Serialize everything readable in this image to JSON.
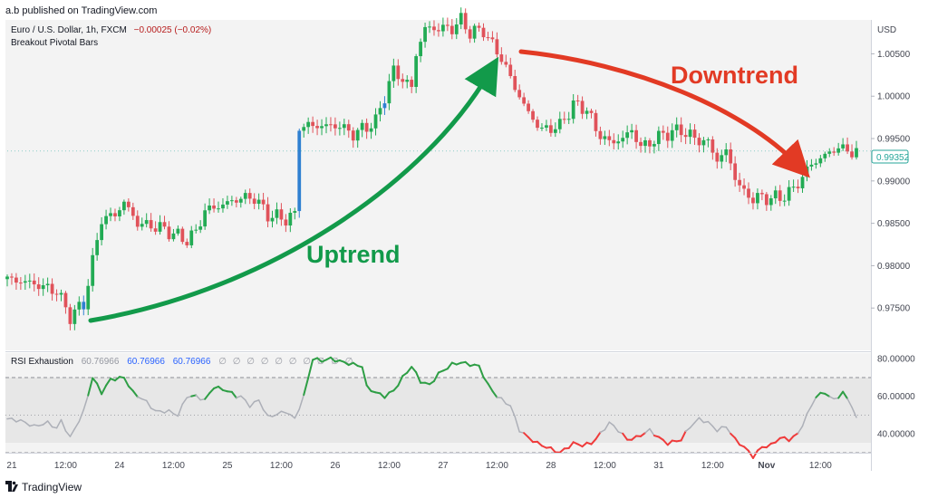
{
  "header": {
    "published_by": "a.b published on TradingView.com",
    "symbol": "Euro / U.S. Dollar, 1h, FXCM",
    "change": "−0.00025 (−0.02%)",
    "indicator": "Breakout Pivotal Bars"
  },
  "footer": {
    "brand": "TradingView"
  },
  "colors": {
    "up": "#22ab54",
    "down": "#e0525a",
    "breakout": "#2f80d1",
    "uptrend_arrow": "#129a4a",
    "downtrend_arrow": "#e23a24",
    "rsi_neutral": "#adb0b8",
    "rsi_overbought": "#2e9e45",
    "rsi_oversold": "#ef3b3b",
    "price_tag": "#26a69a"
  },
  "chart_data": [
    {
      "type": "candlestick",
      "currency_label": "USD",
      "ylim": [
        0.97,
        1.009
      ],
      "yticks": [
        "1.00500",
        "1.00000",
        "0.99500",
        "0.99000",
        "0.98500",
        "0.98000",
        "0.97500"
      ],
      "last_price": "0.99352",
      "last_price_value": 0.99352,
      "x_labels": [
        {
          "i": 1,
          "label": "21"
        },
        {
          "i": 13,
          "label": "12:00"
        },
        {
          "i": 25,
          "label": "24"
        },
        {
          "i": 37,
          "label": "12:00"
        },
        {
          "i": 49,
          "label": "25"
        },
        {
          "i": 61,
          "label": "12:00"
        },
        {
          "i": 73,
          "label": "26"
        },
        {
          "i": 85,
          "label": "12:00"
        },
        {
          "i": 97,
          "label": "27"
        },
        {
          "i": 109,
          "label": "12:00"
        },
        {
          "i": 121,
          "label": "28"
        },
        {
          "i": 133,
          "label": "12:00"
        },
        {
          "i": 145,
          "label": "31"
        },
        {
          "i": 157,
          "label": "12:00"
        },
        {
          "i": 169,
          "label": "Nov"
        },
        {
          "i": 181,
          "label": "12:00"
        }
      ],
      "annotations": [
        {
          "text": "Uptrend",
          "arrow": "up"
        },
        {
          "text": "Downtrend",
          "arrow": "down"
        }
      ],
      "close_keypoints": [
        [
          0,
          0.9784
        ],
        [
          5,
          0.978
        ],
        [
          11,
          0.977
        ],
        [
          14,
          0.974
        ],
        [
          17,
          0.9755
        ],
        [
          19,
          0.9805
        ],
        [
          21,
          0.9855
        ],
        [
          24,
          0.986
        ],
        [
          26,
          0.9875
        ],
        [
          29,
          0.985
        ],
        [
          34,
          0.9845
        ],
        [
          38,
          0.9835
        ],
        [
          40,
          0.983
        ],
        [
          42,
          0.984
        ],
        [
          44,
          0.9865
        ],
        [
          47,
          0.987
        ],
        [
          52,
          0.988
        ],
        [
          55,
          0.988
        ],
        [
          58,
          0.986
        ],
        [
          62,
          0.9855
        ],
        [
          64,
          0.986
        ],
        [
          65,
          0.9965
        ],
        [
          69,
          0.9965
        ],
        [
          74,
          0.9965
        ],
        [
          77,
          0.9955
        ],
        [
          82,
          0.997
        ],
        [
          84,
          1.0
        ],
        [
          86,
          1.003
        ],
        [
          88,
          1.002
        ],
        [
          90,
          1.001
        ],
        [
          91,
          1.005
        ],
        [
          93,
          1.008
        ],
        [
          96,
          1.008
        ],
        [
          99,
          1.008
        ],
        [
          101,
          1.009
        ],
        [
          103,
          1.0075
        ],
        [
          106,
          1.0078
        ],
        [
          108,
          1.006
        ],
        [
          110,
          1.0045
        ],
        [
          113,
          1.001
        ],
        [
          116,
          0.998
        ],
        [
          119,
          0.996
        ],
        [
          123,
          0.9965
        ],
        [
          126,
          0.999
        ],
        [
          129,
          0.9985
        ],
        [
          131,
          0.996
        ],
        [
          134,
          0.9945
        ],
        [
          137,
          0.995
        ],
        [
          139,
          0.996
        ],
        [
          141,
          0.994
        ],
        [
          143,
          0.9945
        ],
        [
          146,
          0.9955
        ],
        [
          150,
          0.996
        ],
        [
          153,
          0.995
        ],
        [
          156,
          0.9945
        ],
        [
          158,
          0.9925
        ],
        [
          160,
          0.9935
        ],
        [
          162,
          0.9905
        ],
        [
          164,
          0.9885
        ],
        [
          166,
          0.988
        ],
        [
          169,
          0.988
        ],
        [
          172,
          0.988
        ],
        [
          175,
          0.989
        ],
        [
          177,
          0.9905
        ],
        [
          179,
          0.992
        ],
        [
          182,
          0.993
        ],
        [
          185,
          0.994
        ],
        [
          187,
          0.9935
        ]
      ],
      "breakout_bars": [
        17,
        65,
        84
      ]
    },
    {
      "type": "line",
      "title": "RSI Exhaustion",
      "values_shown": [
        "60.76966",
        "60.76966",
        "60.76966"
      ],
      "na_markers": [
        "∅",
        "∅",
        "∅",
        "∅",
        "∅",
        "∅",
        "∅",
        "∅",
        "∅",
        "∅"
      ],
      "ylim": [
        30,
        83
      ],
      "yticks": [
        "80.00000",
        "60.00000",
        "40.00000"
      ],
      "upper_band": 70,
      "lower_band": 30,
      "mid_line": 50,
      "overbought": 60,
      "oversold": 40,
      "rsi_keypoints": [
        [
          0,
          48
        ],
        [
          3,
          47
        ],
        [
          6,
          44
        ],
        [
          9,
          46
        ],
        [
          11,
          43
        ],
        [
          12,
          47
        ],
        [
          14,
          38
        ],
        [
          17,
          52
        ],
        [
          19,
          70
        ],
        [
          21,
          62
        ],
        [
          23,
          69
        ],
        [
          26,
          70
        ],
        [
          28,
          62
        ],
        [
          31,
          57
        ],
        [
          33,
          52
        ],
        [
          36,
          52
        ],
        [
          38,
          50
        ],
        [
          40,
          60
        ],
        [
          42,
          60
        ],
        [
          44,
          58
        ],
        [
          46,
          65
        ],
        [
          49,
          63
        ],
        [
          51,
          60
        ],
        [
          52,
          60
        ],
        [
          54,
          55
        ],
        [
          56,
          58
        ],
        [
          58,
          49
        ],
        [
          62,
          52
        ],
        [
          64,
          48
        ],
        [
          66,
          60
        ],
        [
          68,
          80
        ],
        [
          70,
          79
        ],
        [
          72,
          80
        ],
        [
          75,
          78
        ],
        [
          77,
          77
        ],
        [
          79,
          76
        ],
        [
          80,
          65
        ],
        [
          82,
          62
        ],
        [
          84,
          60
        ],
        [
          86,
          63
        ],
        [
          88,
          70
        ],
        [
          90,
          76
        ],
        [
          92,
          68
        ],
        [
          94,
          66
        ],
        [
          96,
          72
        ],
        [
          99,
          77
        ],
        [
          101,
          78
        ],
        [
          103,
          77
        ],
        [
          105,
          76
        ],
        [
          107,
          66
        ],
        [
          109,
          60
        ],
        [
          112,
          55
        ],
        [
          114,
          42
        ],
        [
          116,
          38
        ],
        [
          118,
          35
        ],
        [
          120,
          33
        ],
        [
          123,
          30
        ],
        [
          126,
          35
        ],
        [
          128,
          34
        ],
        [
          130,
          35
        ],
        [
          132,
          40
        ],
        [
          134,
          46
        ],
        [
          136,
          42
        ],
        [
          138,
          37
        ],
        [
          140,
          38
        ],
        [
          143,
          42
        ],
        [
          145,
          38
        ],
        [
          147,
          35
        ],
        [
          150,
          37
        ],
        [
          152,
          44
        ],
        [
          154,
          48
        ],
        [
          156,
          46
        ],
        [
          158,
          42
        ],
        [
          160,
          44
        ],
        [
          162,
          37
        ],
        [
          164,
          33
        ],
        [
          166,
          28
        ],
        [
          168,
          33
        ],
        [
          170,
          34
        ],
        [
          172,
          38
        ],
        [
          174,
          37
        ],
        [
          176,
          40
        ],
        [
          178,
          50
        ],
        [
          180,
          60
        ],
        [
          182,
          62
        ],
        [
          184,
          58
        ],
        [
          186,
          62
        ],
        [
          188,
          55
        ],
        [
          189,
          48
        ]
      ]
    }
  ]
}
